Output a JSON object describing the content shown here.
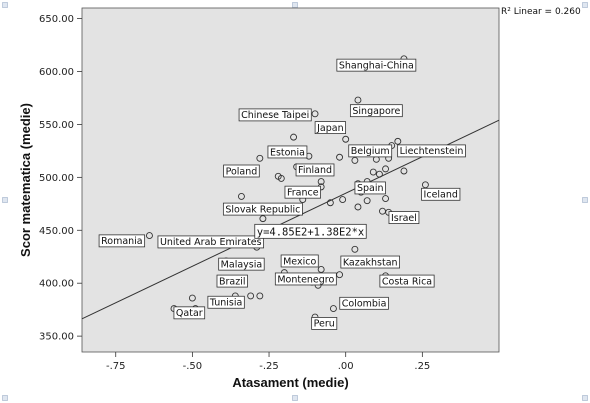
{
  "chart_data": {
    "type": "scatter",
    "xlabel": "Atasament (medie)",
    "ylabel": "Scor matematica (medie)",
    "xlim": [
      -0.86,
      0.5
    ],
    "ylim": [
      335,
      660
    ],
    "xticks": [
      -0.75,
      -0.5,
      -0.25,
      0.0,
      0.25
    ],
    "xtick_labels": [
      "-.75",
      "-.50",
      "-.25",
      ".00",
      ".25"
    ],
    "yticks": [
      350,
      400,
      450,
      500,
      550,
      600,
      650
    ],
    "ytick_labels": [
      "350.00",
      "400.00",
      "450.00",
      "500.00",
      "550.00",
      "600.00",
      "650.00"
    ],
    "grid": false,
    "plot_background": "#e3e3e3",
    "marker_color": "#333333",
    "r2_label": "R² Linear = 0.260",
    "fit_line": {
      "intercept": 485,
      "slope": 138,
      "equation_label": "y=4.85E2+1.38E2*x"
    },
    "points": [
      {
        "x": 0.19,
        "y": 612
      },
      {
        "x": 0.04,
        "y": 573
      },
      {
        "x": 0.05,
        "y": 565
      },
      {
        "x": -0.1,
        "y": 560
      },
      {
        "x": -0.17,
        "y": 538
      },
      {
        "x": 0.0,
        "y": 536
      },
      {
        "x": 0.17,
        "y": 534
      },
      {
        "x": 0.15,
        "y": 530
      },
      {
        "x": 0.08,
        "y": 527
      },
      {
        "x": -0.12,
        "y": 520
      },
      {
        "x": -0.28,
        "y": 518
      },
      {
        "x": -0.02,
        "y": 519
      },
      {
        "x": 0.03,
        "y": 516
      },
      {
        "x": 0.1,
        "y": 517
      },
      {
        "x": 0.14,
        "y": 518
      },
      {
        "x": -0.16,
        "y": 510
      },
      {
        "x": 0.13,
        "y": 508
      },
      {
        "x": 0.19,
        "y": 506
      },
      {
        "x": 0.09,
        "y": 505
      },
      {
        "x": 0.11,
        "y": 503
      },
      {
        "x": -0.22,
        "y": 501
      },
      {
        "x": -0.21,
        "y": 499
      },
      {
        "x": -0.08,
        "y": 496
      },
      {
        "x": 0.07,
        "y": 496
      },
      {
        "x": 0.04,
        "y": 494
      },
      {
        "x": 0.26,
        "y": 493
      },
      {
        "x": -0.08,
        "y": 491
      },
      {
        "x": 0.04,
        "y": 489
      },
      {
        "x": 0.05,
        "y": 486
      },
      {
        "x": -0.34,
        "y": 482
      },
      {
        "x": 0.13,
        "y": 480
      },
      {
        "x": -0.14,
        "y": 479
      },
      {
        "x": -0.01,
        "y": 479
      },
      {
        "x": 0.07,
        "y": 478
      },
      {
        "x": -0.05,
        "y": 476
      },
      {
        "x": 0.04,
        "y": 472
      },
      {
        "x": 0.12,
        "y": 468
      },
      {
        "x": 0.14,
        "y": 467
      },
      {
        "x": -0.27,
        "y": 461
      },
      {
        "x": -0.24,
        "y": 449
      },
      {
        "x": -0.64,
        "y": 445
      },
      {
        "x": -0.29,
        "y": 434
      },
      {
        "x": 0.03,
        "y": 432
      },
      {
        "x": -0.39,
        "y": 421
      },
      {
        "x": -0.08,
        "y": 413
      },
      {
        "x": -0.2,
        "y": 410
      },
      {
        "x": -0.02,
        "y": 408
      },
      {
        "x": 0.13,
        "y": 407
      },
      {
        "x": -0.11,
        "y": 401
      },
      {
        "x": -0.09,
        "y": 398
      },
      {
        "x": -0.5,
        "y": 386
      },
      {
        "x": -0.36,
        "y": 388
      },
      {
        "x": -0.31,
        "y": 388
      },
      {
        "x": -0.28,
        "y": 388
      },
      {
        "x": -0.56,
        "y": 376
      },
      {
        "x": -0.49,
        "y": 376
      },
      {
        "x": -0.04,
        "y": 376
      },
      {
        "x": -0.1,
        "y": 368
      }
    ],
    "annotations": [
      {
        "text": "Shanghai-China",
        "x": 0.1,
        "y": 606
      },
      {
        "text": "Singapore",
        "x": 0.1,
        "y": 563
      },
      {
        "text": "Chinese Taipei",
        "x": -0.23,
        "y": 559
      },
      {
        "text": "Japan",
        "x": -0.05,
        "y": 547
      },
      {
        "text": "Estonia",
        "x": -0.19,
        "y": 524
      },
      {
        "text": "Belgium",
        "x": 0.08,
        "y": 525
      },
      {
        "text": "Liechtenstein",
        "x": 0.28,
        "y": 525
      },
      {
        "text": "Poland",
        "x": -0.34,
        "y": 506
      },
      {
        "text": "Finland",
        "x": -0.1,
        "y": 507
      },
      {
        "text": "Spain",
        "x": 0.08,
        "y": 490
      },
      {
        "text": "France",
        "x": -0.14,
        "y": 486
      },
      {
        "text": "Iceland",
        "x": 0.31,
        "y": 484
      },
      {
        "text": "Slovak Republic",
        "x": -0.27,
        "y": 470
      },
      {
        "text": "Israel",
        "x": 0.19,
        "y": 462
      },
      {
        "text": "Romania",
        "x": -0.73,
        "y": 440
      },
      {
        "text": "United Arab Emirates",
        "x": -0.44,
        "y": 439
      },
      {
        "text": "Malaysia",
        "x": -0.34,
        "y": 418
      },
      {
        "text": "Mexico",
        "x": -0.15,
        "y": 421
      },
      {
        "text": "Kazakhstan",
        "x": 0.08,
        "y": 420
      },
      {
        "text": "Montenegro",
        "x": -0.13,
        "y": 404
      },
      {
        "text": "Costa Rica",
        "x": 0.2,
        "y": 402
      },
      {
        "text": "Brazil",
        "x": -0.37,
        "y": 402
      },
      {
        "text": "Tunisia",
        "x": -0.39,
        "y": 382
      },
      {
        "text": "Colombia",
        "x": 0.06,
        "y": 381
      },
      {
        "text": "Qatar",
        "x": -0.51,
        "y": 372
      },
      {
        "text": "Peru",
        "x": -0.07,
        "y": 362
      }
    ]
  }
}
